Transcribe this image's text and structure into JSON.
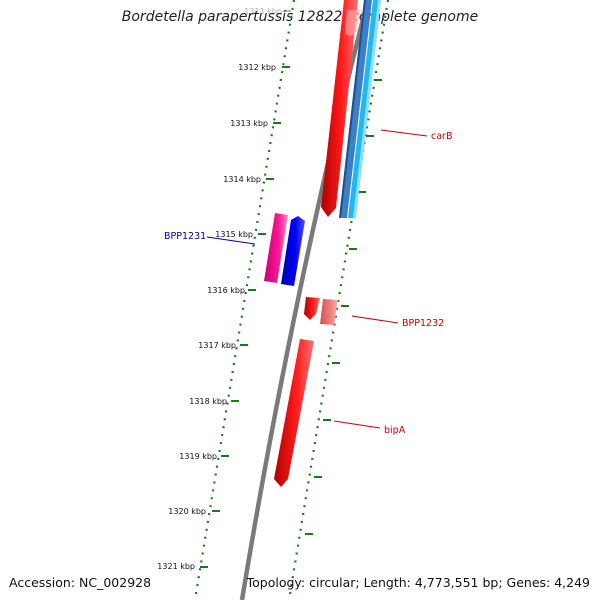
{
  "title": "Bordetella parapertussis 12822, complete genome",
  "accession": "Accession: NC_002928",
  "summary": "Topology: circular; Length: 4,773,551 bp; Genes: 4,249",
  "scale": {
    "ticks": [
      {
        "label": "1311 kbp",
        "faded": true
      },
      {
        "label": "1312 kbp"
      },
      {
        "label": "1313 kbp"
      },
      {
        "label": "1314 kbp"
      },
      {
        "label": "1315 kbp"
      },
      {
        "label": "1316 kbp"
      },
      {
        "label": "1317 kbp"
      },
      {
        "label": "1318 kbp"
      },
      {
        "label": "1319 kbp"
      },
      {
        "label": "1320 kbp"
      },
      {
        "label": "1321 kbp"
      }
    ]
  },
  "genes": [
    {
      "label": "carB",
      "color": "#cc0000"
    },
    {
      "label": "BPP1231",
      "color": "#000099"
    },
    {
      "label": "BPP1232",
      "color": "#cc0000"
    },
    {
      "label": "bipA",
      "color": "#cc0000"
    }
  ],
  "colors": {
    "backbone": "#7a7a7a",
    "tick": "#1a7a1a",
    "cds_forward": "#ff0000",
    "cds_reverse": "#0000ff",
    "rna": "#ff1493",
    "light_red": "#f07f7f",
    "blue_track": "#3a7fc8",
    "cyan_track": "#22b8ee"
  }
}
